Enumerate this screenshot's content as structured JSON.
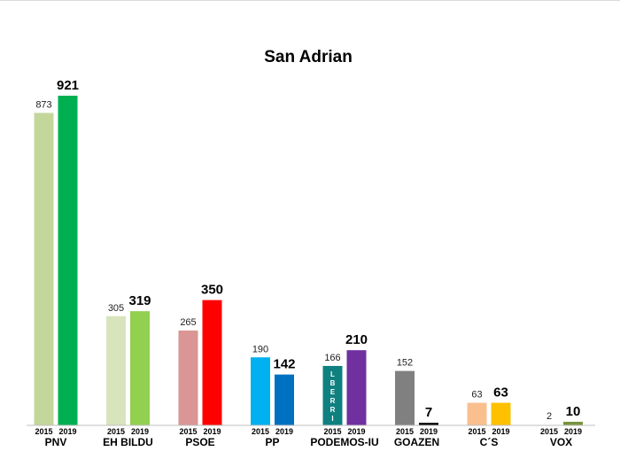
{
  "chart_data": {
    "type": "bar",
    "title": "San Adrian",
    "categories": [
      "PNV",
      "EH BILDU",
      "PSOE",
      "PP",
      "PODEMOS-IU",
      "GOAZEN",
      "C´S",
      "VOX"
    ],
    "series": [
      {
        "name": "2015",
        "values": [
          873,
          305,
          265,
          190,
          166,
          152,
          63,
          2
        ]
      },
      {
        "name": "2019",
        "values": [
          921,
          319,
          350,
          142,
          210,
          7,
          63,
          10
        ]
      }
    ],
    "year_labels": [
      "2015",
      "2019"
    ],
    "colors_2015": [
      "#c4d79b",
      "#d8e4bc",
      "#da9694",
      "#00b0f0",
      "#0f8080",
      "#808080",
      "#fabf8f",
      "#ffffff"
    ],
    "colors_2019": [
      "#00b050",
      "#92d050",
      "#ff0000",
      "#0070c0",
      "#7030a0",
      "#000000",
      "#ffc000",
      "#77933c"
    ],
    "bar_text": {
      "category_index": 4,
      "series": "2015",
      "text": "LBERRI"
    },
    "ylim": [
      0,
      921
    ],
    "grid": false,
    "legend": "none"
  }
}
